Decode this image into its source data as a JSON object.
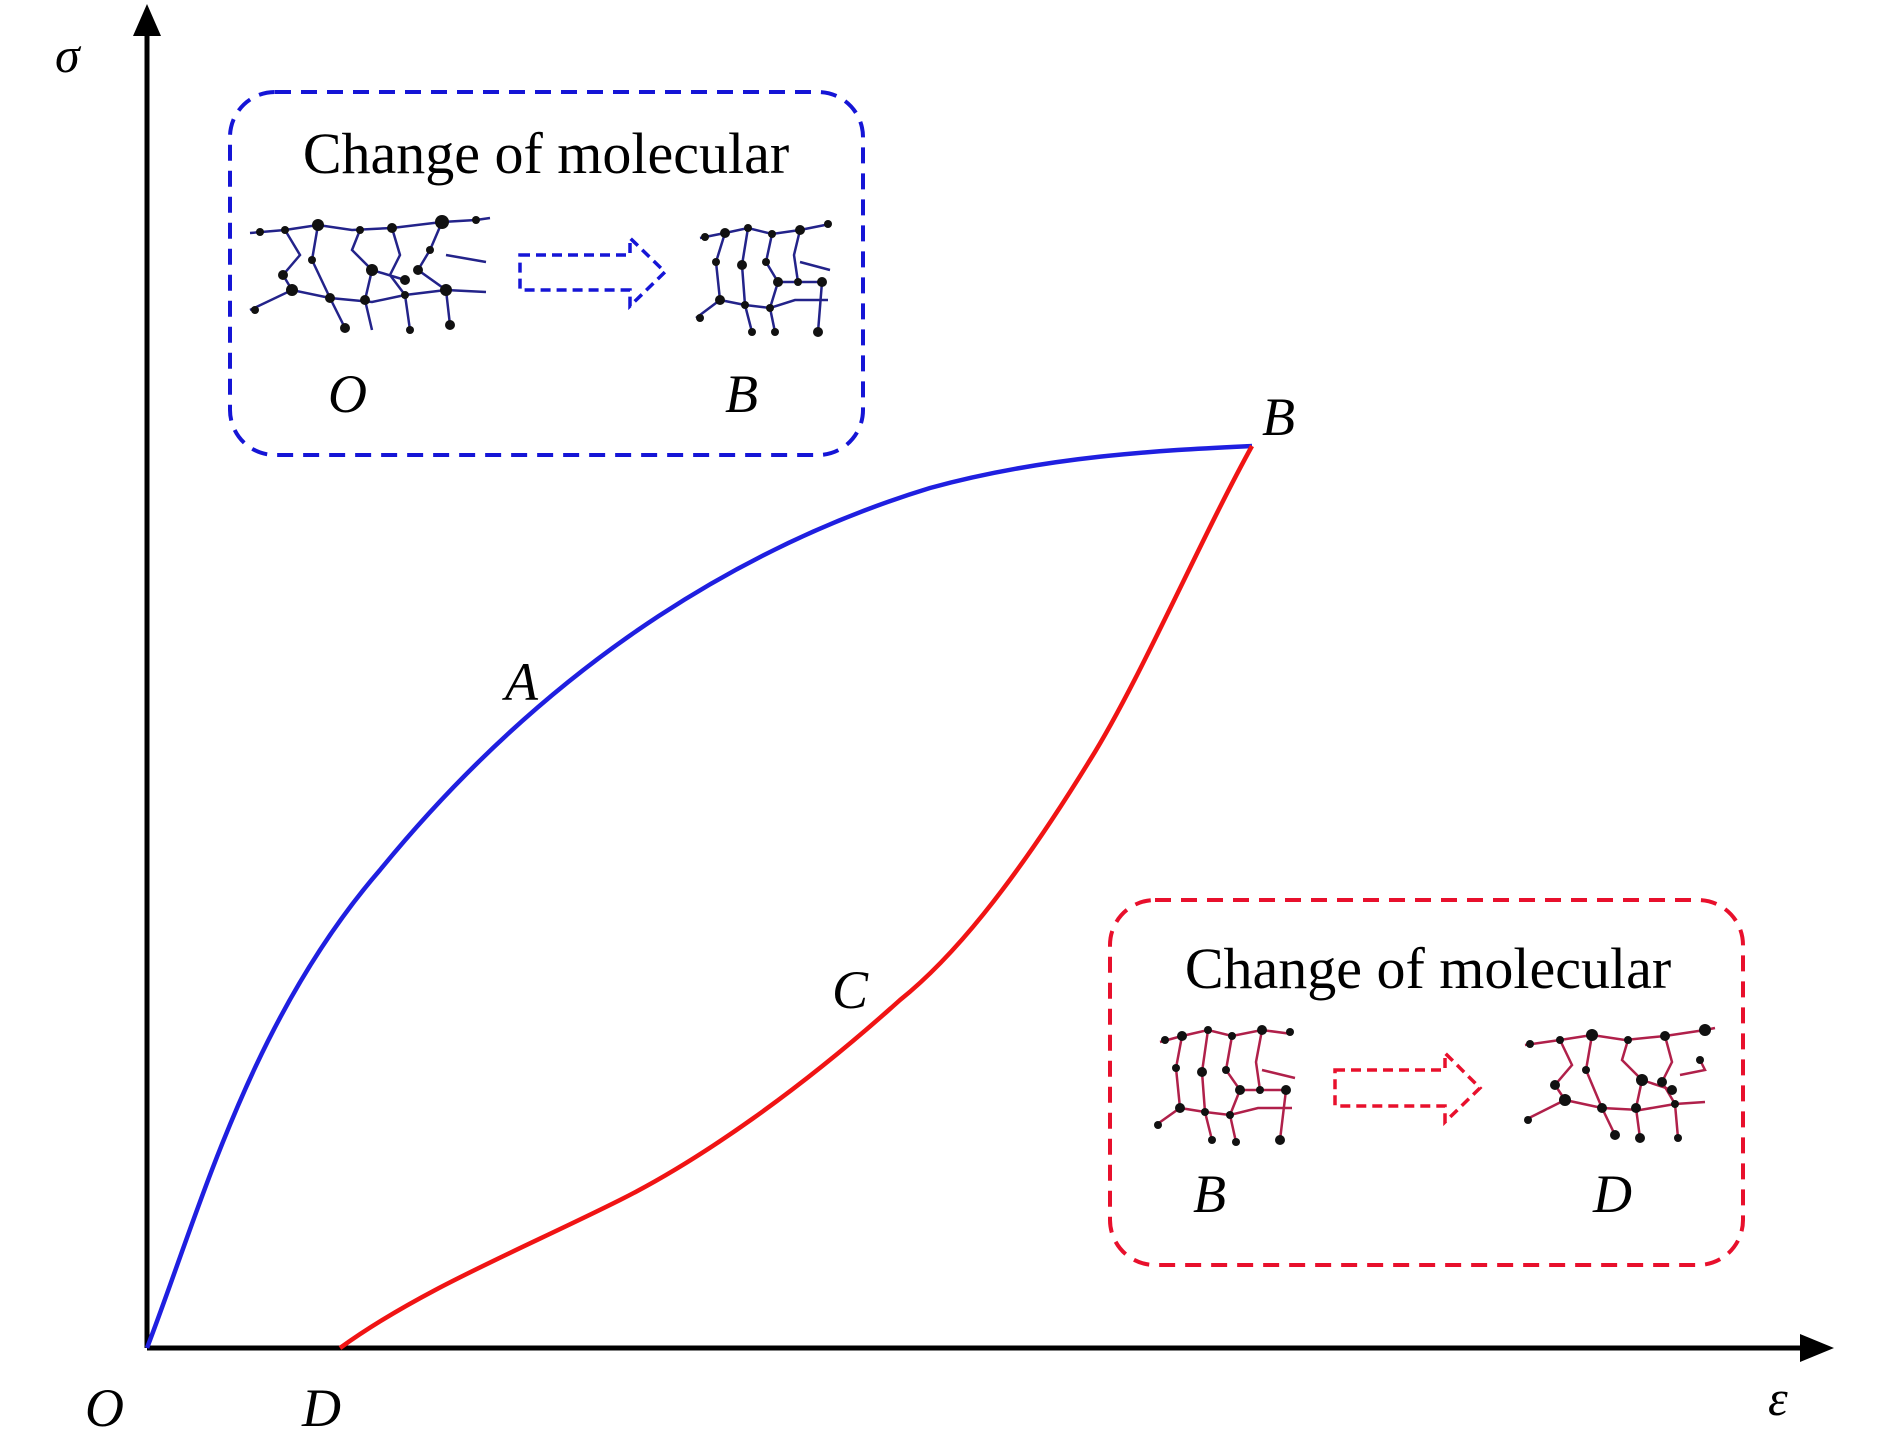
{
  "axes": {
    "y_label": "σ",
    "x_label": "ε",
    "origin_label": "O"
  },
  "curve_points": {
    "A": "A",
    "B": "B",
    "C": "C",
    "D": "D"
  },
  "inset_loading": {
    "title": "Change of molecular",
    "from_label": "O",
    "to_label": "B",
    "color": "#1515d6"
  },
  "inset_unloading": {
    "title": "Change of molecular",
    "from_label": "B",
    "to_label": "D",
    "color": "#e8102c"
  },
  "colors": {
    "loading_curve": "#1f1fe0",
    "unloading_curve": "#f01414",
    "axes": "#000000"
  }
}
